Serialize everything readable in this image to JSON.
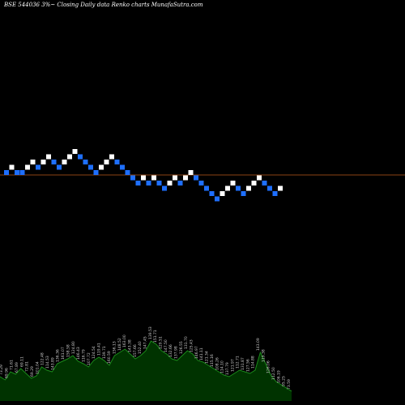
{
  "header": {
    "title": "BSE 544036  3%~  Closing Daily data  Renko  charts MunafaSutra.com"
  },
  "colors": {
    "background": "#000000",
    "up_brick": "#ffffff",
    "down_brick": "#1e6fff",
    "reference_line": "#8b4513",
    "volume_fill": "#003300",
    "volume_line": "#1a8a1a",
    "label_text": "#cccccc"
  },
  "chart_data": {
    "type": "renko",
    "bricks": [
      {
        "level": 0,
        "dir": "down"
      },
      {
        "level": 1,
        "dir": "up"
      },
      {
        "level": 0,
        "dir": "down"
      },
      {
        "level": 0,
        "dir": "down"
      },
      {
        "level": 1,
        "dir": "up"
      },
      {
        "level": 2,
        "dir": "up"
      },
      {
        "level": 1,
        "dir": "down"
      },
      {
        "level": 2,
        "dir": "up"
      },
      {
        "level": 3,
        "dir": "up"
      },
      {
        "level": 2,
        "dir": "down"
      },
      {
        "level": 1,
        "dir": "down"
      },
      {
        "level": 2,
        "dir": "up"
      },
      {
        "level": 3,
        "dir": "up"
      },
      {
        "level": 4,
        "dir": "up"
      },
      {
        "level": 3,
        "dir": "down"
      },
      {
        "level": 2,
        "dir": "down"
      },
      {
        "level": 1,
        "dir": "down"
      },
      {
        "level": 0,
        "dir": "down"
      },
      {
        "level": 1,
        "dir": "up"
      },
      {
        "level": 2,
        "dir": "up"
      },
      {
        "level": 3,
        "dir": "up"
      },
      {
        "level": 2,
        "dir": "down"
      },
      {
        "level": 1,
        "dir": "down"
      },
      {
        "level": 0,
        "dir": "down"
      },
      {
        "level": -1,
        "dir": "down"
      },
      {
        "level": -2,
        "dir": "down"
      },
      {
        "level": -1,
        "dir": "up"
      },
      {
        "level": -2,
        "dir": "down"
      },
      {
        "level": -1,
        "dir": "up"
      },
      {
        "level": -2,
        "dir": "down"
      },
      {
        "level": -3,
        "dir": "down"
      },
      {
        "level": -2,
        "dir": "up"
      },
      {
        "level": -1,
        "dir": "up"
      },
      {
        "level": -2,
        "dir": "down"
      },
      {
        "level": -1,
        "dir": "up"
      },
      {
        "level": 0,
        "dir": "up"
      },
      {
        "level": -1,
        "dir": "down"
      },
      {
        "level": -2,
        "dir": "down"
      },
      {
        "level": -3,
        "dir": "down"
      },
      {
        "level": -4,
        "dir": "down"
      },
      {
        "level": -5,
        "dir": "down"
      },
      {
        "level": -4,
        "dir": "up"
      },
      {
        "level": -3,
        "dir": "up"
      },
      {
        "level": -2,
        "dir": "up"
      },
      {
        "level": -3,
        "dir": "down"
      },
      {
        "level": -4,
        "dir": "down"
      },
      {
        "level": -3,
        "dir": "up"
      },
      {
        "level": -2,
        "dir": "up"
      },
      {
        "level": -1,
        "dir": "up"
      },
      {
        "level": -2,
        "dir": "down"
      },
      {
        "level": -3,
        "dir": "down"
      },
      {
        "level": -4,
        "dir": "down"
      },
      {
        "level": -3,
        "dir": "up"
      }
    ],
    "volume": [
      30,
      26,
      36,
      33,
      40,
      34,
      28,
      31,
      42,
      38,
      36,
      46,
      49,
      52,
      56,
      49,
      46,
      42,
      50,
      54,
      50,
      44,
      56,
      60,
      64,
      58,
      52,
      56,
      62,
      74,
      70,
      62,
      58,
      52,
      50,
      56,
      62,
      58,
      50,
      48,
      44,
      40,
      36,
      32,
      30,
      34,
      38,
      36,
      34,
      38,
      60,
      46,
      32,
      24,
      20,
      16,
      12
    ],
    "volume_labels": [
      "73.29",
      "69.96",
      "71.61",
      "67.89",
      "69.11",
      "72.81",
      "69.29",
      "101.04",
      "122.48",
      "114.53",
      "143.89",
      "136.36",
      "161.07",
      "158.58",
      "124.80",
      "146.43",
      "116.79",
      "107.72",
      "124.54",
      "119.41",
      "139.71",
      "160.59",
      "156.13",
      "148.52",
      "163.00",
      "143.38",
      "157.66",
      "152.40",
      "147.45",
      "139.53",
      "151.71",
      "129.51",
      "147.50",
      "132.66",
      "137.98",
      "126.55",
      "131.70",
      "125.43",
      "146.97",
      "141.11",
      "121.34",
      "115.16",
      "108.26",
      "114.10",
      "137.79",
      "121.97",
      "112.71",
      "131.87",
      "127.56",
      "114.88",
      "143.09",
      "119.38",
      "126.06",
      "112.50",
      "106.19",
      "95.25",
      "73.59"
    ],
    "grid": false
  }
}
